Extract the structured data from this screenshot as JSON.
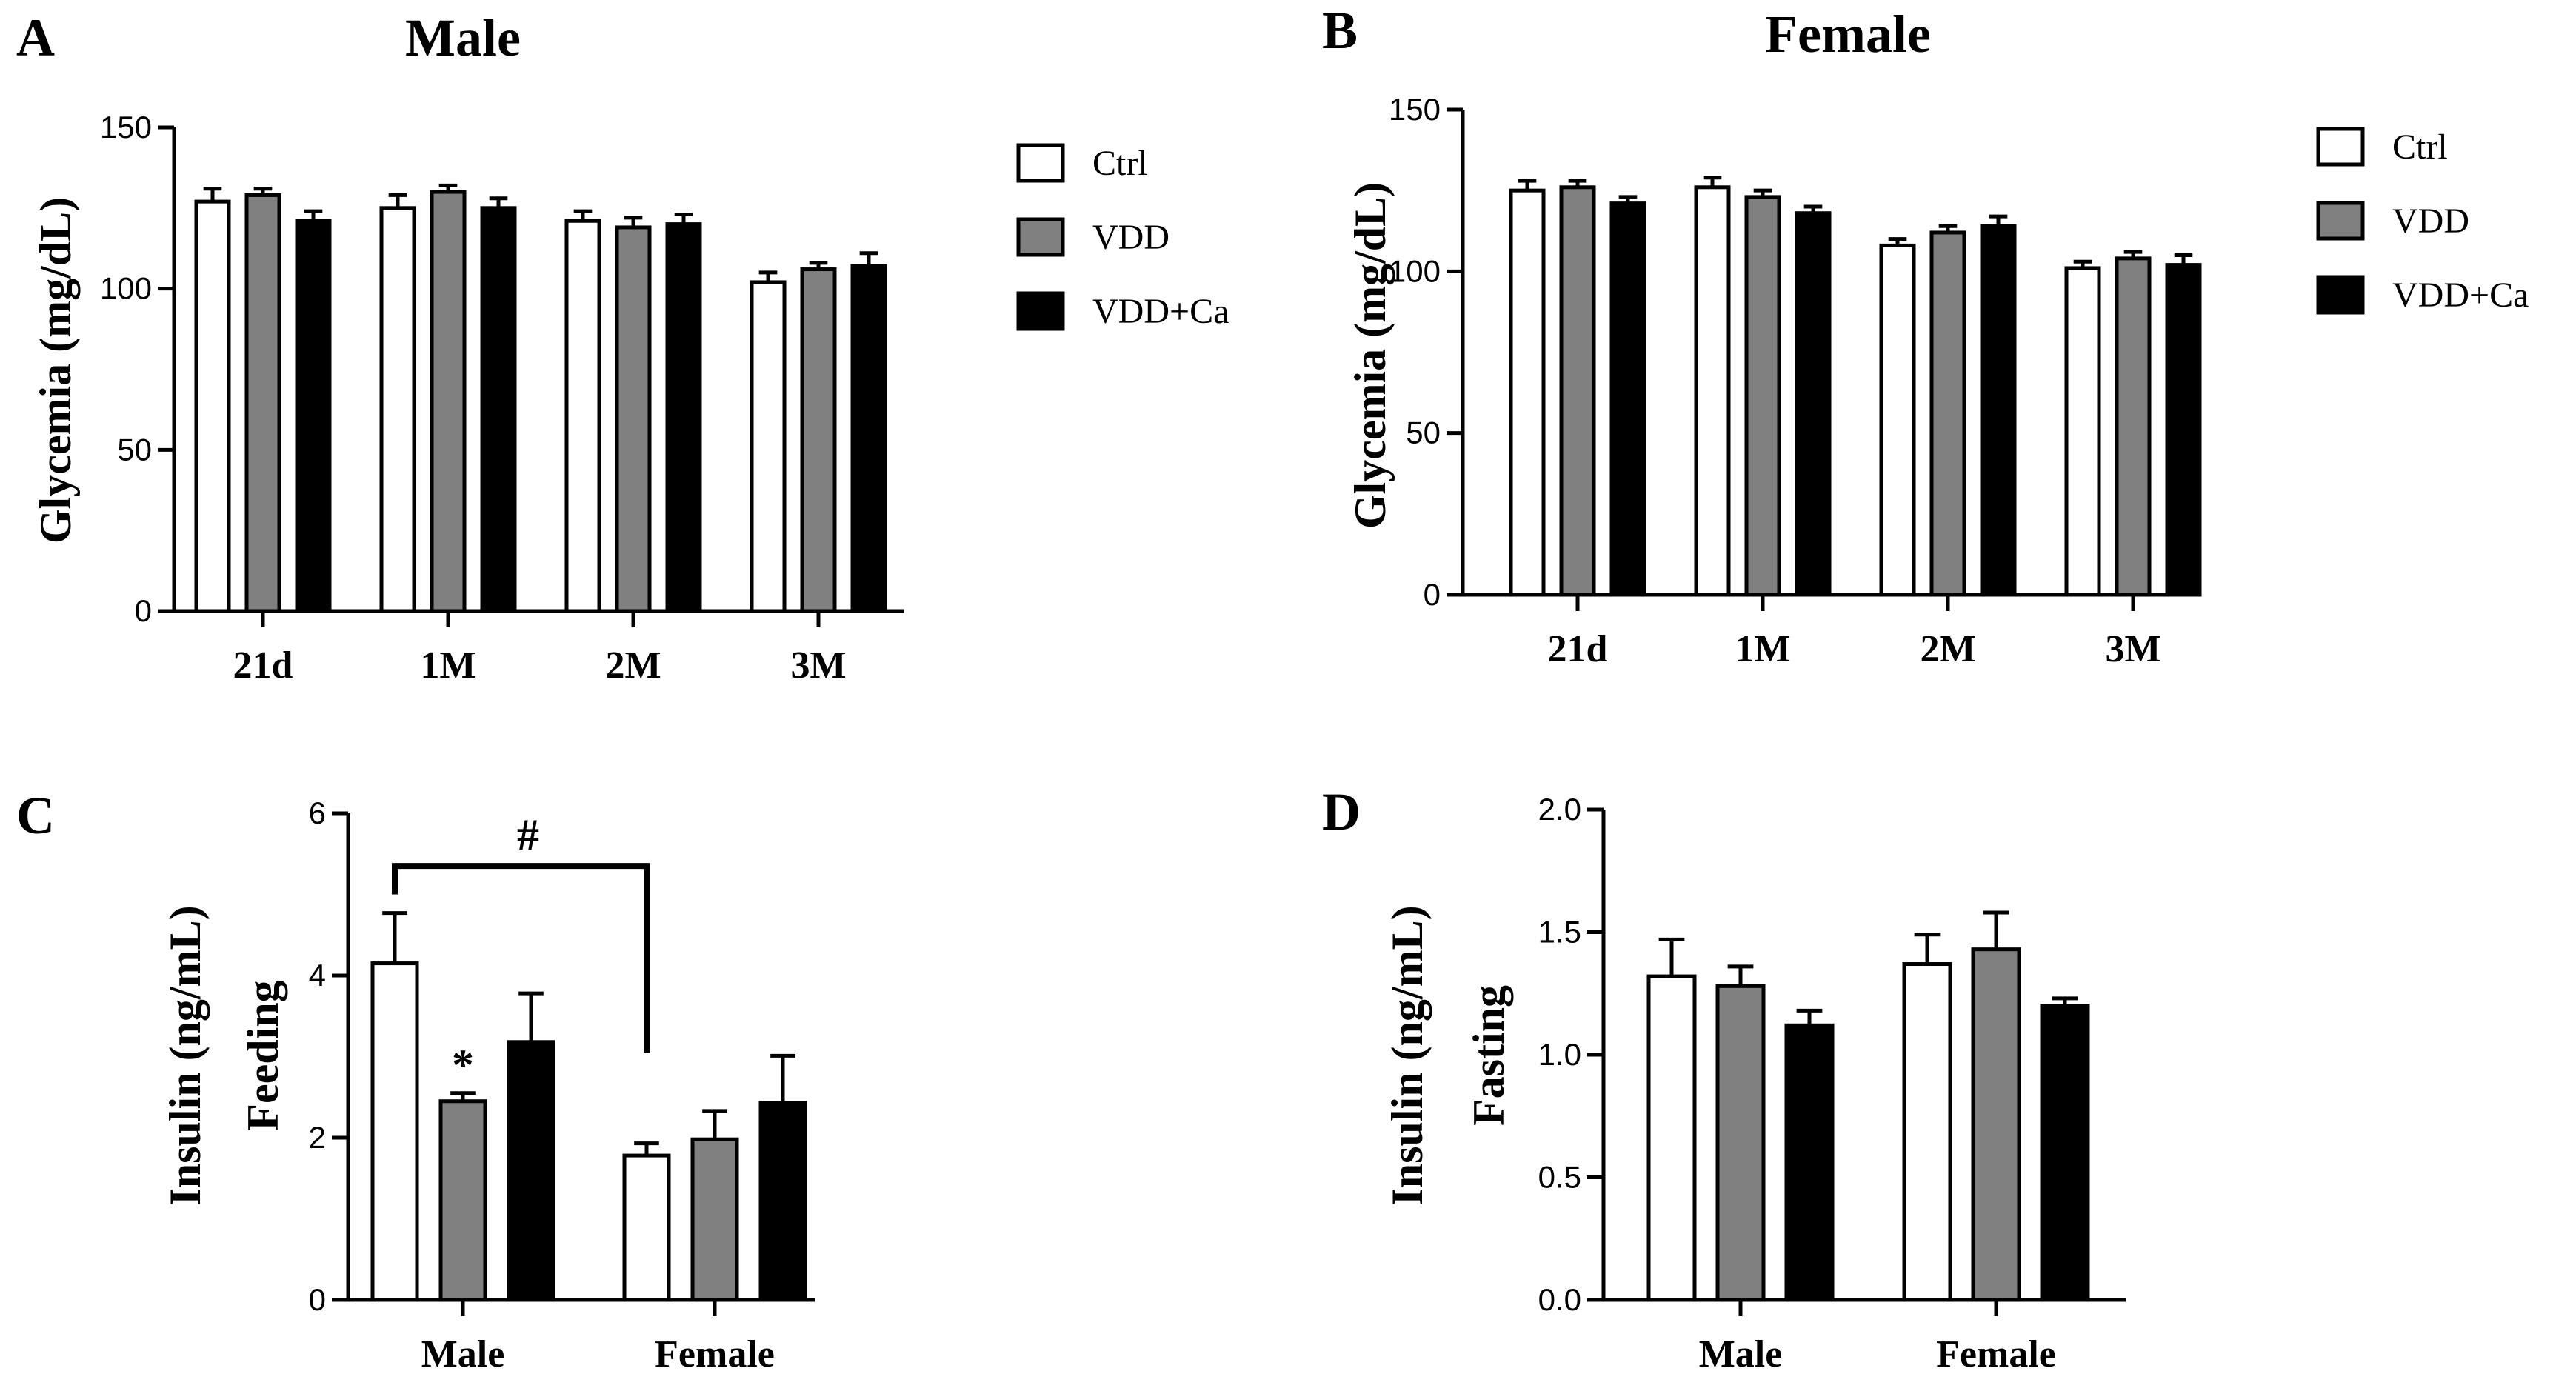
{
  "colors": {
    "Ctrl": "#ffffff",
    "VDD": "#808080",
    "VDD+Ca": "#000000",
    "axis": "#000000"
  },
  "chart_data": [
    {
      "panel": "A",
      "type": "bar",
      "title": "Male",
      "ylabel": "Glycemia (mg/dL)",
      "xlabel": "",
      "ylim": [
        0,
        150
      ],
      "yticks": [
        0,
        50,
        100,
        150
      ],
      "categories": [
        "21d",
        "1M",
        "2M",
        "3M"
      ],
      "series": [
        {
          "name": "Ctrl",
          "values": [
            127,
            125,
            121,
            102
          ],
          "errors": [
            4,
            4,
            3,
            3
          ]
        },
        {
          "name": "VDD",
          "values": [
            129,
            130,
            119,
            106
          ],
          "errors": [
            2,
            2,
            3,
            2
          ]
        },
        {
          "name": "VDD+Ca",
          "values": [
            121,
            125,
            120,
            107
          ],
          "errors": [
            3,
            3,
            3,
            4
          ]
        }
      ],
      "legend": [
        "Ctrl",
        "VDD",
        "VDD+Ca"
      ]
    },
    {
      "panel": "B",
      "type": "bar",
      "title": "Female",
      "ylabel": "Glycemia (mg/dL)",
      "xlabel": "",
      "ylim": [
        0,
        150
      ],
      "yticks": [
        0,
        50,
        100,
        150
      ],
      "categories": [
        "21d",
        "1M",
        "2M",
        "3M"
      ],
      "series": [
        {
          "name": "Ctrl",
          "values": [
            125,
            126,
            108,
            101
          ],
          "errors": [
            3,
            3,
            2,
            2
          ]
        },
        {
          "name": "VDD",
          "values": [
            126,
            123,
            112,
            104
          ],
          "errors": [
            2,
            2,
            2,
            2
          ]
        },
        {
          "name": "VDD+Ca",
          "values": [
            121,
            118,
            114,
            102
          ],
          "errors": [
            2,
            2,
            3,
            3
          ]
        }
      ],
      "legend": [
        "Ctrl",
        "VDD",
        "VDD+Ca"
      ]
    },
    {
      "panel": "C",
      "type": "bar",
      "title": "",
      "ylabel": "Insulin (ng/mL)",
      "ylabel2": "Feeding",
      "xlabel": "",
      "ylim": [
        0,
        6
      ],
      "yticks": [
        0,
        2,
        4,
        6
      ],
      "categories": [
        "Male",
        "Female"
      ],
      "series": [
        {
          "name": "Ctrl",
          "values": [
            4.15,
            1.78
          ],
          "errors": [
            0.62,
            0.15
          ]
        },
        {
          "name": "VDD",
          "values": [
            2.45,
            1.98
          ],
          "errors": [
            0.1,
            0.35
          ]
        },
        {
          "name": "VDD+Ca",
          "values": [
            3.18,
            2.43
          ],
          "errors": [
            0.6,
            0.58
          ]
        }
      ],
      "annotations": [
        {
          "text": "*",
          "target": "VDD at Male"
        },
        {
          "text": "#",
          "target": "bracket Male Ctrl vs Female Ctrl"
        }
      ]
    },
    {
      "panel": "D",
      "type": "bar",
      "title": "",
      "ylabel": "Insulin (ng/mL)",
      "ylabel2": "Fasting",
      "xlabel": "",
      "ylim": [
        0,
        2.0
      ],
      "yticks": [
        "0.0",
        "0.5",
        "1.0",
        "1.5",
        "2.0"
      ],
      "categories": [
        "Male",
        "Female"
      ],
      "series": [
        {
          "name": "Ctrl",
          "values": [
            1.32,
            1.37
          ],
          "errors": [
            0.15,
            0.12
          ]
        },
        {
          "name": "VDD",
          "values": [
            1.28,
            1.43
          ],
          "errors": [
            0.08,
            0.15
          ]
        },
        {
          "name": "VDD+Ca",
          "values": [
            1.12,
            1.2
          ],
          "errors": [
            0.06,
            0.03
          ]
        }
      ]
    }
  ]
}
